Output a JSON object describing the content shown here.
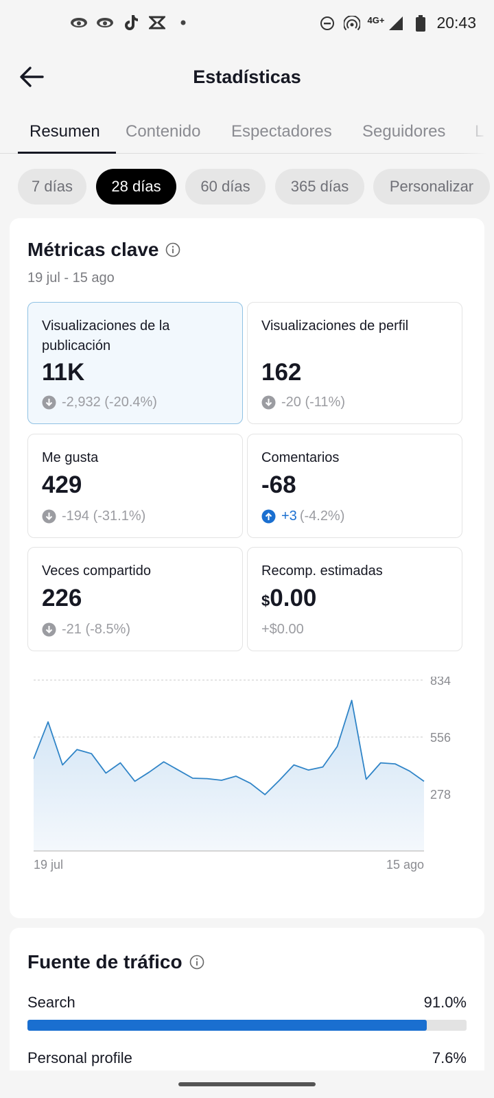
{
  "status": {
    "time": "20:43",
    "network": "4G+",
    "left_icons": [
      "eye-app-icon",
      "eye-app-icon",
      "tiktok-icon",
      "capcut-icon",
      "dot-icon"
    ],
    "right_icons": [
      "do-not-disturb-icon",
      "hotspot-icon",
      "signal-icon",
      "battery-icon"
    ]
  },
  "header": {
    "title": "Estadísticas",
    "back_icon": "arrow-left-icon"
  },
  "tabs": [
    {
      "label": "Resumen",
      "active": true
    },
    {
      "label": "Contenido"
    },
    {
      "label": "Espectadores"
    },
    {
      "label": "Seguidores"
    },
    {
      "label": "L"
    }
  ],
  "periods": [
    {
      "label": "7 días"
    },
    {
      "label": "28 días",
      "active": true
    },
    {
      "label": "60 días"
    },
    {
      "label": "365 días"
    },
    {
      "label": "Personalizar"
    }
  ],
  "key_metrics": {
    "title": "Métricas clave",
    "date_range": "19 jul - 15 ago",
    "cards": [
      {
        "label": "Visualizaciones de la publicación",
        "value": "11K",
        "change": "-2,932 (-20.4%)",
        "direction": "down",
        "selected": true
      },
      {
        "label": "Visualizaciones de perfil",
        "value": "162",
        "change": "-20 (-11%)",
        "direction": "down"
      },
      {
        "label": "Me gusta",
        "value": "429",
        "change": "-194 (-31.1%)",
        "direction": "down"
      },
      {
        "label": "Comentarios",
        "value": "-68",
        "change_up": "+3",
        "change_rest": "(-4.2%)",
        "direction": "up"
      },
      {
        "label": "Veces compartido",
        "value": "226",
        "change": "-21 (-8.5%)",
        "direction": "down"
      },
      {
        "label": "Recomp. estimadas",
        "currency": "$",
        "value": "0.00",
        "change": "+$0.00",
        "direction": "none"
      }
    ]
  },
  "chart_data": {
    "type": "area",
    "x_start_label": "19 jul",
    "x_end_label": "15 ago",
    "y_ticks": [
      834,
      556,
      278
    ],
    "ylim": [
      0,
      834
    ],
    "grid": true,
    "color": "#2f84c7",
    "values": [
      450,
      630,
      420,
      495,
      475,
      380,
      430,
      340,
      385,
      435,
      395,
      355,
      353,
      345,
      365,
      330,
      275,
      345,
      420,
      395,
      410,
      510,
      735,
      350,
      430,
      425,
      390,
      340
    ]
  },
  "traffic": {
    "title": "Fuente de tráfico",
    "rows": [
      {
        "name": "Search",
        "pct": "91.0%",
        "value": 91.0
      },
      {
        "name": "Personal profile",
        "pct": "7.6%",
        "value": 7.6
      }
    ]
  }
}
